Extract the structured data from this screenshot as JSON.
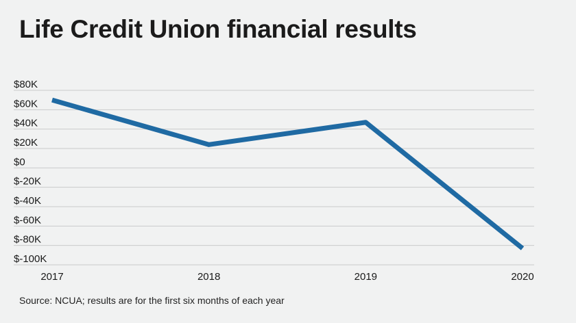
{
  "title": "Life Credit Union financial results",
  "source": "Source: NCUA; results are for the first six months of each year",
  "chart_data": {
    "type": "line",
    "title": "Life Credit Union financial results",
    "xlabel": "",
    "ylabel": "",
    "x": [
      "2017",
      "2018",
      "2019",
      "2020"
    ],
    "series": [
      {
        "values": [
          70000,
          24000,
          47000,
          -83000
        ],
        "color": "#1f6aa3"
      }
    ],
    "ylim": [
      -100000,
      80000
    ],
    "yticks": [
      80000,
      60000,
      40000,
      20000,
      0,
      -20000,
      -40000,
      -60000,
      -80000,
      -100000
    ],
    "ytick_labels": [
      "$80K",
      "$60K",
      "$40K",
      "$20K",
      "$0",
      "$-20K",
      "$-40K",
      "$-60K",
      "$-80K",
      "$-100K"
    ],
    "grid": "horizontal",
    "gridline_color": "#c9cacb",
    "legend": "none"
  }
}
